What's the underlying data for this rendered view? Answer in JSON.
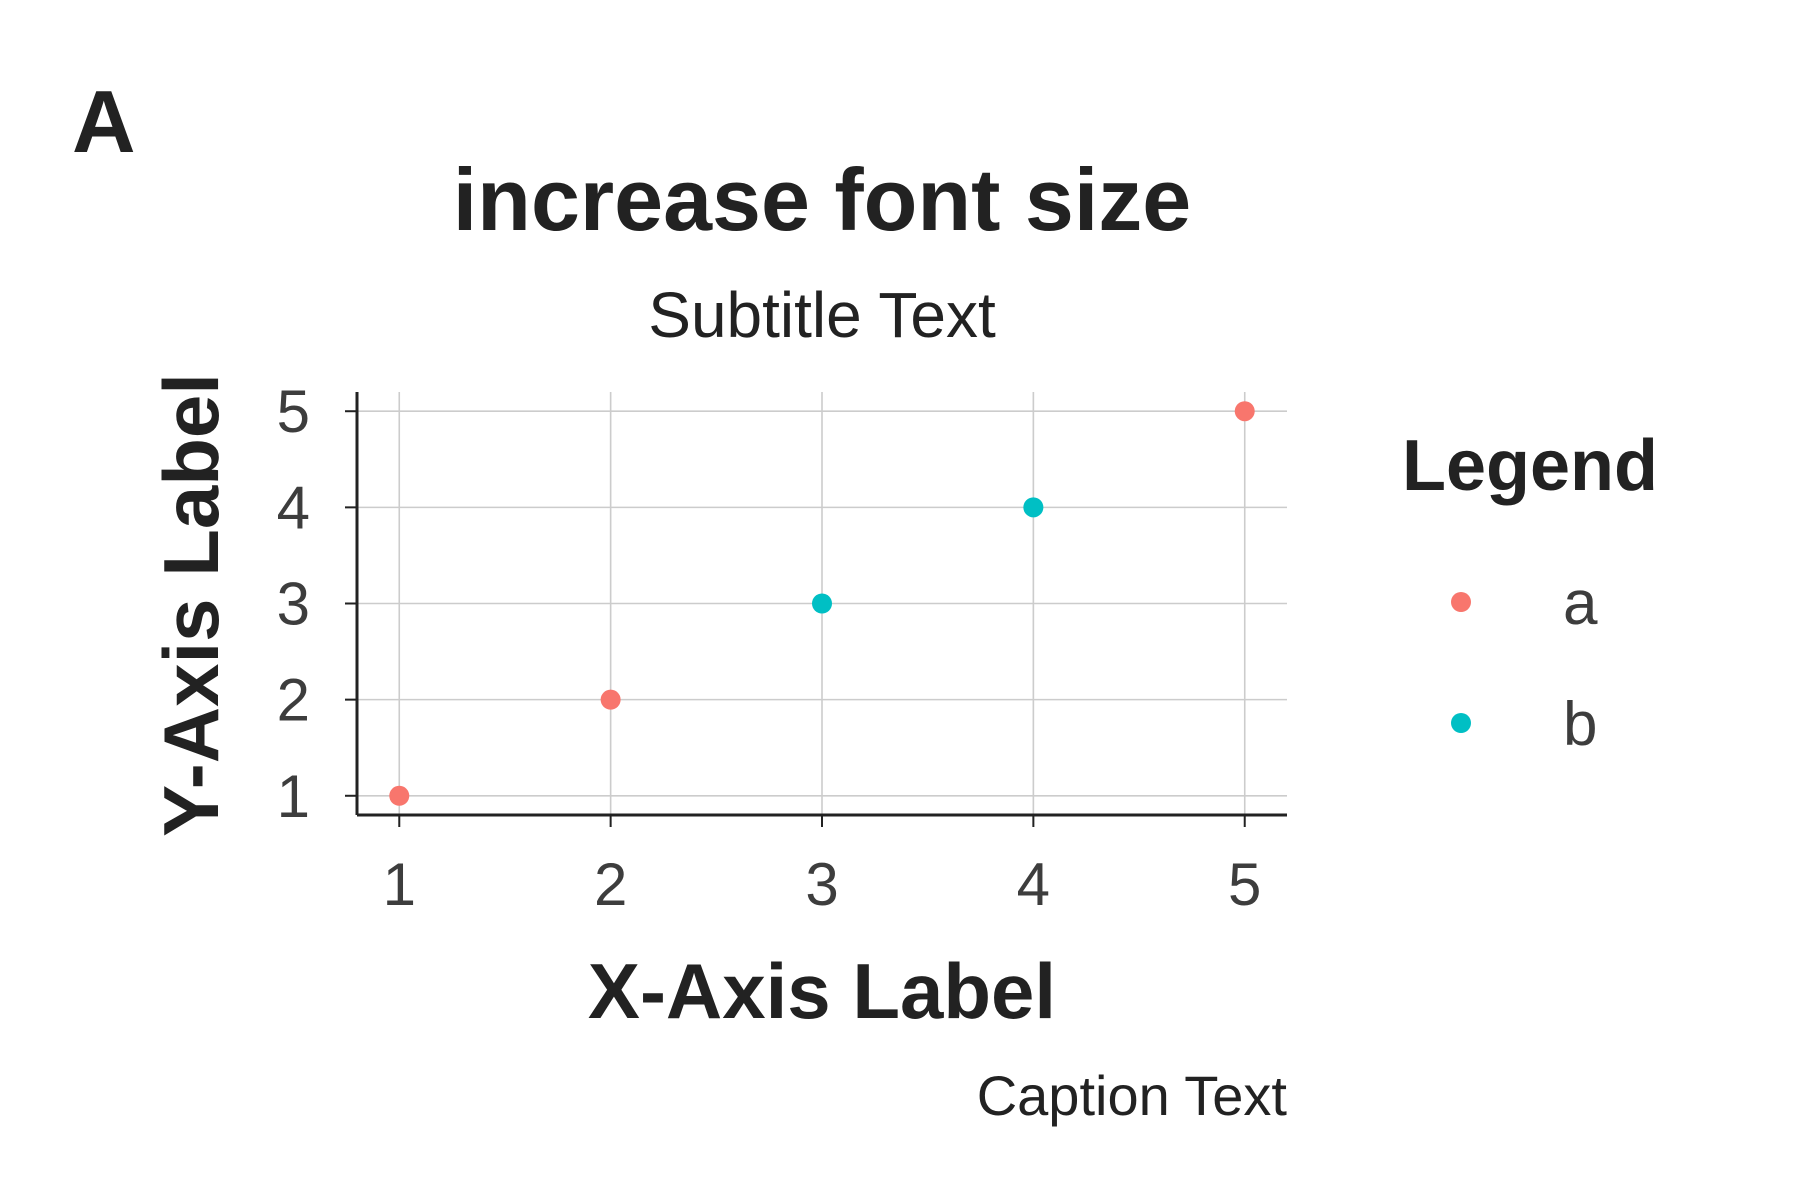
{
  "chart_data": {
    "type": "scatter",
    "tag": "A",
    "title": "increase font size",
    "subtitle": "Subtitle Text",
    "xlabel": "X-Axis Label",
    "ylabel": "Y-Axis Label",
    "caption": "Caption Text",
    "xlim": [
      0.8,
      5.2
    ],
    "ylim": [
      0.8,
      5.2
    ],
    "x_ticks": [
      1,
      2,
      3,
      4,
      5
    ],
    "y_ticks": [
      1,
      2,
      3,
      4,
      5
    ],
    "grid": true,
    "legend": {
      "title": "Legend",
      "placement": "right"
    },
    "series": [
      {
        "name": "a",
        "color": "#f8766d",
        "x": [
          1,
          2,
          5
        ],
        "y": [
          1,
          2,
          5
        ]
      },
      {
        "name": "b",
        "color": "#00bfc4",
        "x": [
          3,
          4
        ],
        "y": [
          3,
          4
        ]
      }
    ]
  }
}
